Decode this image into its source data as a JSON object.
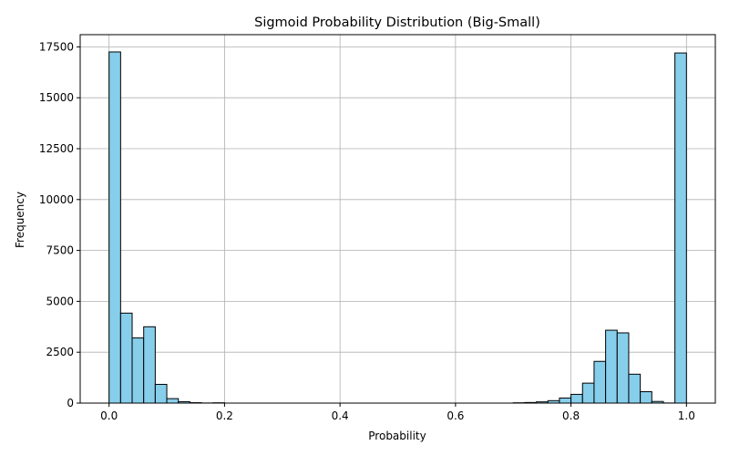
{
  "chart_data": {
    "type": "bar",
    "title": "Sigmoid Probability Distribution (Big-Small)",
    "xlabel": "Probability",
    "ylabel": "Frequency",
    "xlim": [
      -0.05,
      1.05
    ],
    "ylim": [
      0,
      18100
    ],
    "grid": true,
    "bar_color": "#87ceeb",
    "edge_color": "#000000",
    "grid_color": "#b0b0b0",
    "bin_width": 0.02,
    "x_ticks": [
      0.0,
      0.2,
      0.4,
      0.6,
      0.8,
      1.0
    ],
    "x_tick_labels": [
      "0.0",
      "0.2",
      "0.4",
      "0.6",
      "0.8",
      "1.0"
    ],
    "y_ticks": [
      0,
      2500,
      5000,
      7500,
      10000,
      12500,
      15000,
      17500
    ],
    "y_tick_labels": [
      "0",
      "2500",
      "5000",
      "7500",
      "10000",
      "12500",
      "15000",
      "17500"
    ],
    "bins": [
      {
        "x": 0.0,
        "count": 17250
      },
      {
        "x": 0.02,
        "count": 4420
      },
      {
        "x": 0.04,
        "count": 3200
      },
      {
        "x": 0.06,
        "count": 3750
      },
      {
        "x": 0.08,
        "count": 920
      },
      {
        "x": 0.1,
        "count": 220
      },
      {
        "x": 0.12,
        "count": 70
      },
      {
        "x": 0.14,
        "count": 20
      },
      {
        "x": 0.16,
        "count": 5
      },
      {
        "x": 0.18,
        "count": 15
      },
      {
        "x": 0.7,
        "count": 15
      },
      {
        "x": 0.72,
        "count": 30
      },
      {
        "x": 0.74,
        "count": 60
      },
      {
        "x": 0.76,
        "count": 120
      },
      {
        "x": 0.78,
        "count": 250
      },
      {
        "x": 0.8,
        "count": 430
      },
      {
        "x": 0.82,
        "count": 980
      },
      {
        "x": 0.84,
        "count": 2050
      },
      {
        "x": 0.86,
        "count": 3580
      },
      {
        "x": 0.88,
        "count": 3450
      },
      {
        "x": 0.9,
        "count": 1420
      },
      {
        "x": 0.92,
        "count": 560
      },
      {
        "x": 0.94,
        "count": 80
      },
      {
        "x": 0.96,
        "count": 5
      },
      {
        "x": 0.98,
        "count": 17200
      }
    ]
  }
}
